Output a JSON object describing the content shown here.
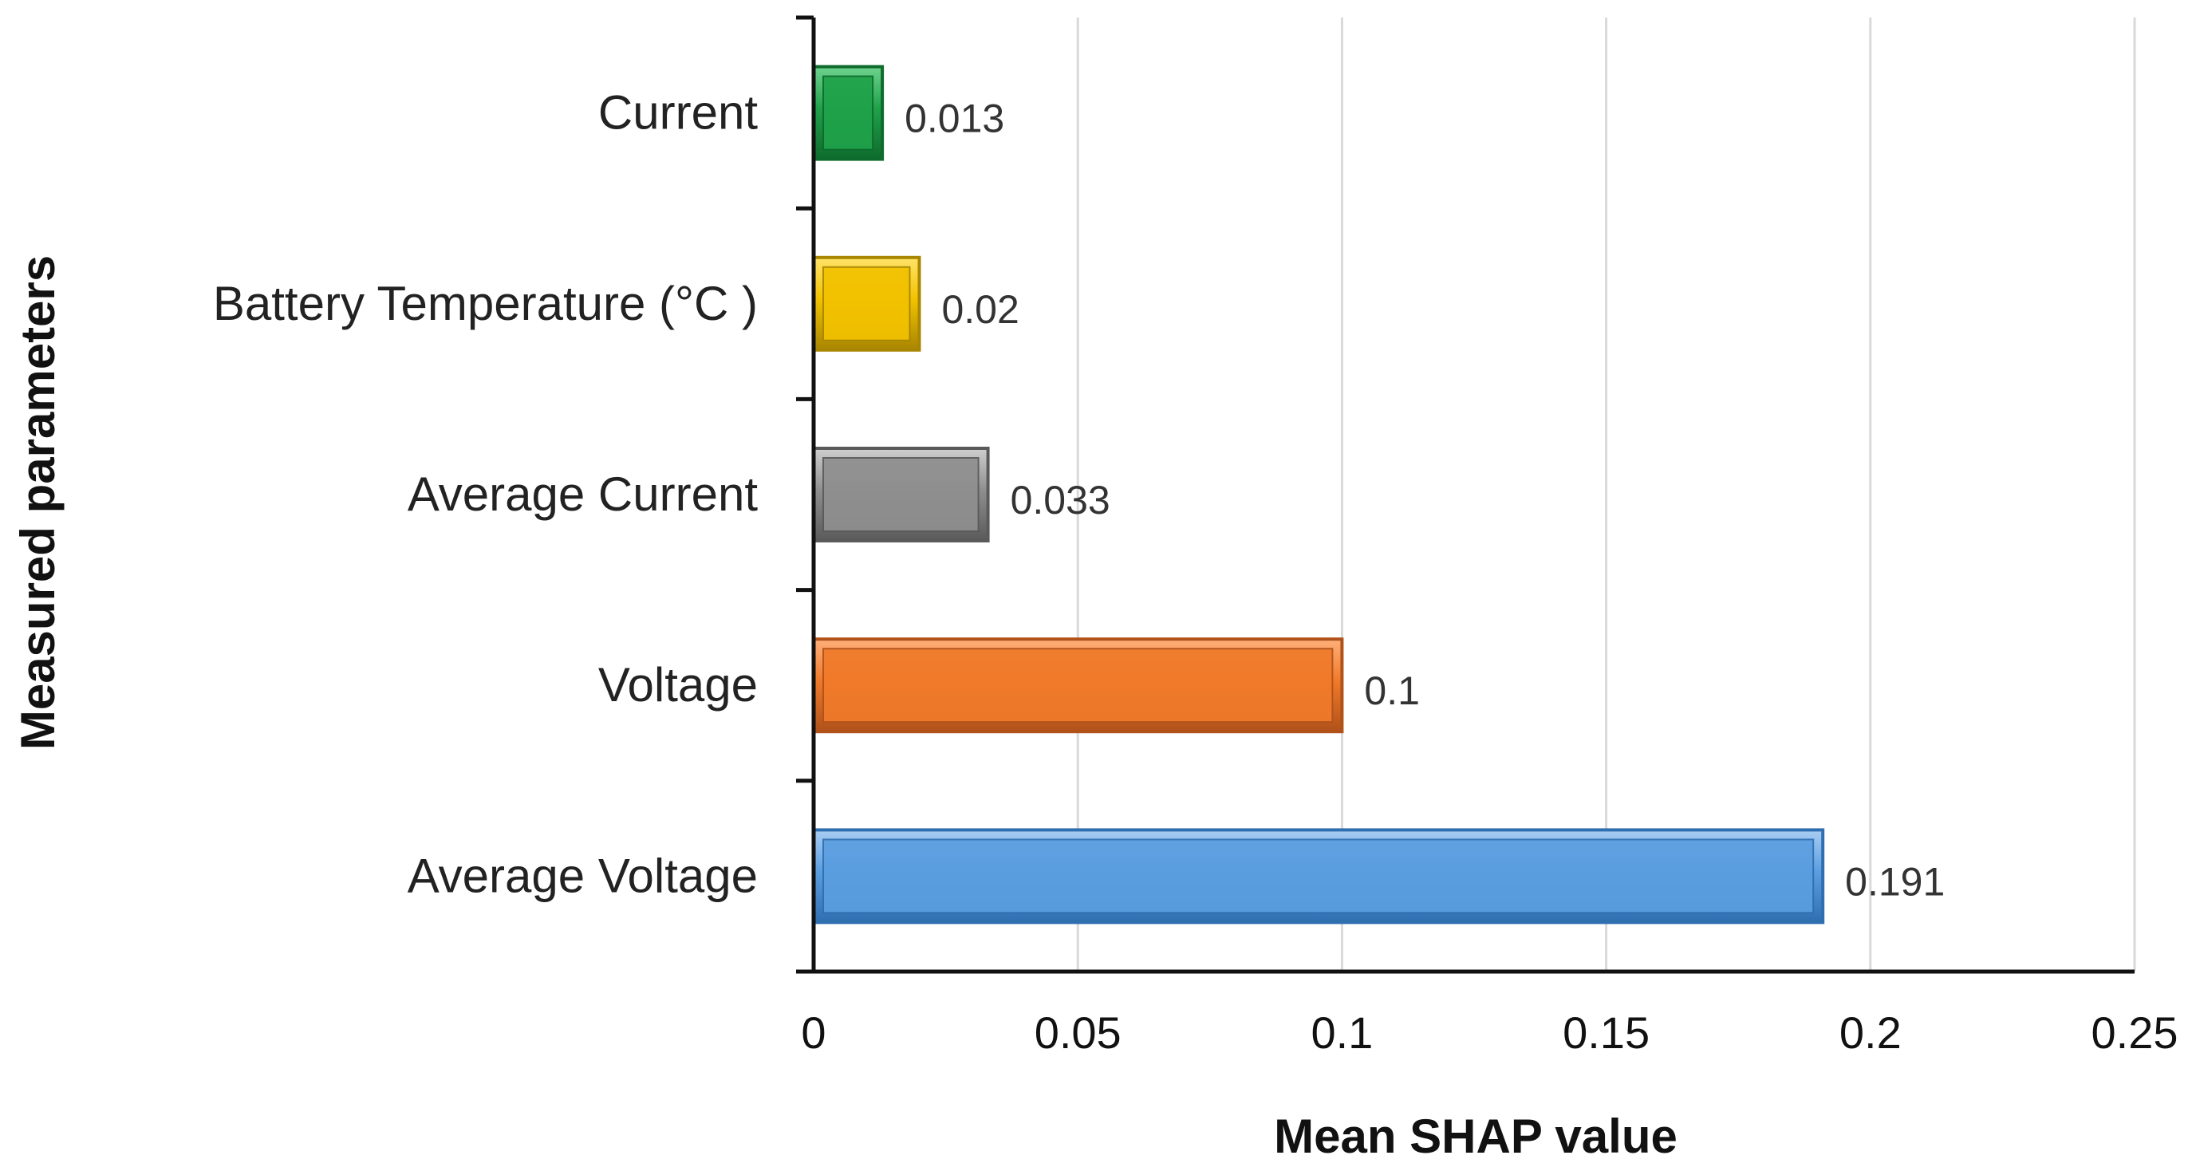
{
  "chart_data": {
    "type": "bar",
    "orientation": "horizontal",
    "categories": [
      "Current",
      "Battery Temperature (°C )",
      "Average Current",
      "Voltage",
      "Average Voltage"
    ],
    "values": [
      0.013,
      0.02,
      0.033,
      0.1,
      0.191
    ],
    "value_labels": [
      "0.013",
      "0.02",
      "0.033",
      "0.1",
      "0.191"
    ],
    "bar_colors": [
      {
        "base": "#1fa24a",
        "light": "#6fd38f",
        "dark": "#0e6b2d"
      },
      {
        "base": "#f2c200",
        "light": "#ffe36a",
        "dark": "#a88600"
      },
      {
        "base": "#8f8f8f",
        "light": "#cfcfcf",
        "dark": "#5a5a5a"
      },
      {
        "base": "#f07a2a",
        "light": "#ffb07a",
        "dark": "#b0521a"
      },
      {
        "base": "#5b9ee0",
        "light": "#a9cdf3",
        "dark": "#2f6fb0"
      }
    ],
    "xlim": [
      0,
      0.25
    ],
    "x_ticks": [
      0,
      0.05,
      0.1,
      0.15,
      0.2,
      0.25
    ],
    "x_tick_labels": [
      "0",
      "0.05",
      "0.1",
      "0.15",
      "0.2",
      "0.25"
    ],
    "xlabel": "Mean SHAP value",
    "ylabel": "Measured parameters",
    "grid": "vertical"
  }
}
